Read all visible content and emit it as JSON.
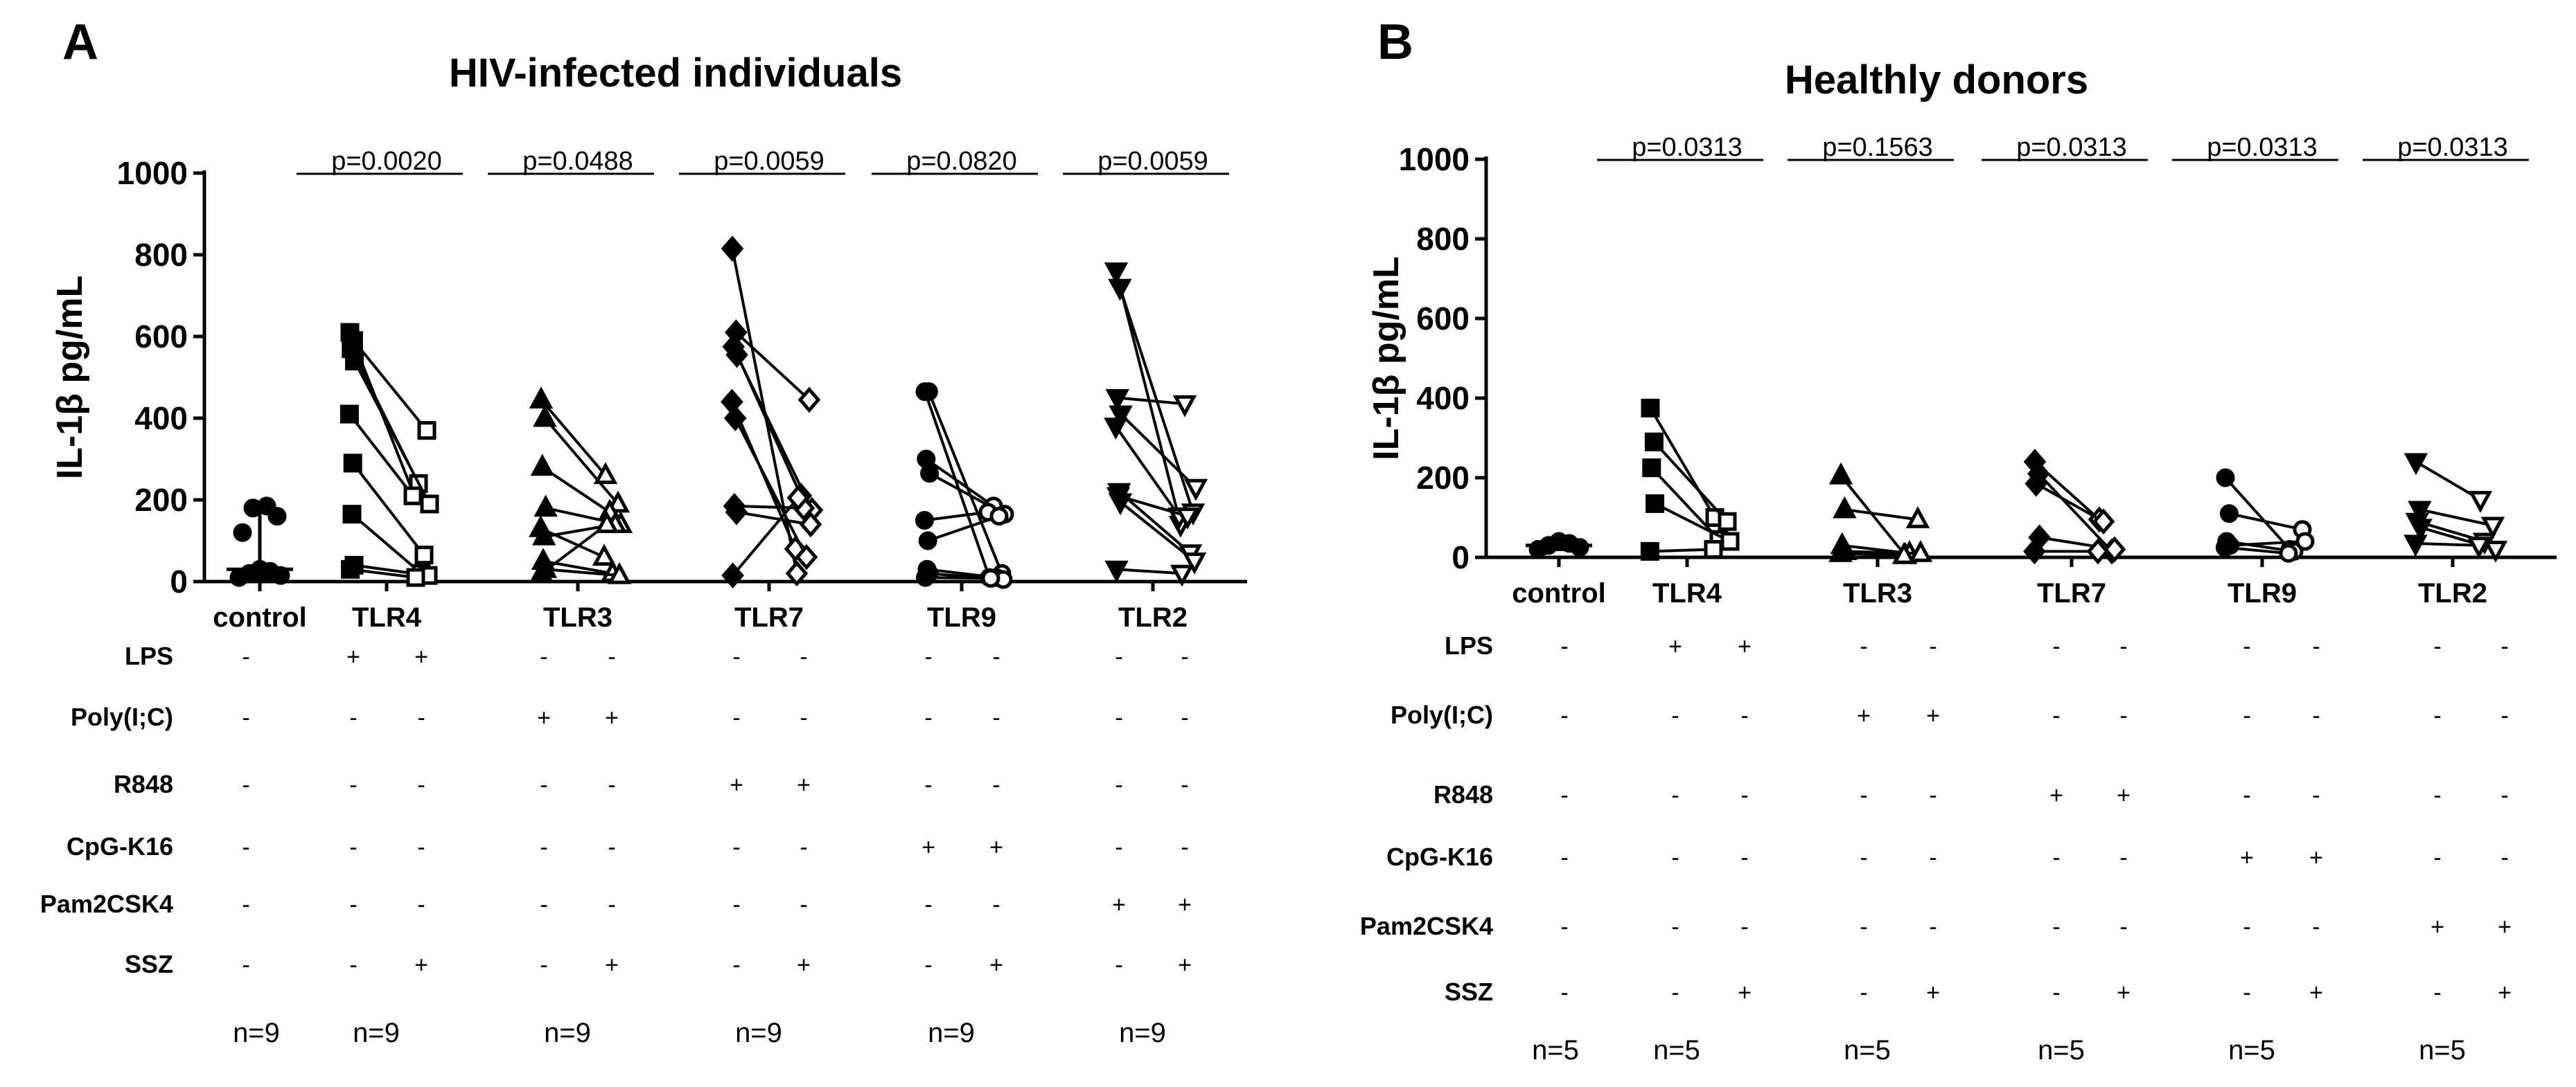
{
  "chart_data": [
    {
      "type": "scatter",
      "panel_letter": "A",
      "title": "HIV-infected individuals",
      "ylabel": "IL-1β pg/mL",
      "ylim": [
        0,
        1000
      ],
      "yticks": [
        0,
        200,
        400,
        600,
        800,
        1000
      ],
      "control": {
        "label": "control",
        "values": [
          10,
          15,
          20,
          25,
          30,
          120,
          160,
          180,
          185
        ],
        "median": 30,
        "whisker_low": 5,
        "whisker_high": 185
      },
      "groups": [
        {
          "label": "TLR4",
          "p": "p=0.0020",
          "marker": "square",
          "pairs": [
            [
              610,
              210
            ],
            [
              590,
              370
            ],
            [
              570,
              240
            ],
            [
              540,
              190
            ],
            [
              410,
              210
            ],
            [
              290,
              65
            ],
            [
              165,
              20
            ],
            [
              40,
              15
            ],
            [
              30,
              10
            ]
          ]
        },
        {
          "label": "TLR3",
          "p": "p=0.0488",
          "marker": "triangle",
          "pairs": [
            [
              445,
              260
            ],
            [
              400,
              190
            ],
            [
              280,
              170
            ],
            [
              180,
              140
            ],
            [
              130,
              60
            ],
            [
              110,
              140
            ],
            [
              50,
              20
            ],
            [
              30,
              15
            ],
            [
              20,
              140
            ]
          ]
        },
        {
          "label": "TLR7",
          "p": "p=0.0059",
          "marker": "diamond",
          "pairs": [
            [
              815,
              20
            ],
            [
              610,
              445
            ],
            [
              575,
              210
            ],
            [
              555,
              175
            ],
            [
              440,
              80
            ],
            [
              400,
              60
            ],
            [
              185,
              180
            ],
            [
              170,
              140
            ],
            [
              15,
              205
            ]
          ]
        },
        {
          "label": "TLR9",
          "p": "p=0.0820",
          "marker": "circle",
          "pairs": [
            [
              465,
              10
            ],
            [
              465,
              20
            ],
            [
              300,
              185
            ],
            [
              265,
              165
            ],
            [
              150,
              170
            ],
            [
              100,
              160
            ],
            [
              30,
              10
            ],
            [
              20,
              5
            ],
            [
              10,
              8
            ]
          ]
        },
        {
          "label": "TLR2",
          "p": "p=0.0059",
          "marker": "triangle-down",
          "pairs": [
            [
              760,
              140
            ],
            [
              720,
              170
            ],
            [
              450,
              435
            ],
            [
              410,
              230
            ],
            [
              380,
              160
            ],
            [
              220,
              70
            ],
            [
              210,
              160
            ],
            [
              195,
              50
            ],
            [
              30,
              20
            ]
          ]
        }
      ],
      "treatment_rows": [
        {
          "label": "LPS",
          "signs": [
            "-",
            "+",
            "+",
            "-",
            "-",
            "-",
            "-",
            "-",
            "-",
            "-",
            "-"
          ]
        },
        {
          "label": "Poly(I;C)",
          "signs": [
            "-",
            "-",
            "-",
            "+",
            "+",
            "-",
            "-",
            "-",
            "-",
            "-",
            "-"
          ]
        },
        {
          "label": "R848",
          "signs": [
            "-",
            "-",
            "-",
            "-",
            "-",
            "+",
            "+",
            "-",
            "-",
            "-",
            "-"
          ]
        },
        {
          "label": "CpG-K16",
          "signs": [
            "-",
            "-",
            "-",
            "-",
            "-",
            "-",
            "-",
            "+",
            "+",
            "-",
            "-"
          ]
        },
        {
          "label": "Pam2CSK4",
          "signs": [
            "-",
            "-",
            "-",
            "-",
            "-",
            "-",
            "-",
            "-",
            "-",
            "+",
            "+"
          ]
        },
        {
          "label": "SSZ",
          "signs": [
            "-",
            "-",
            "+",
            "-",
            "+",
            "-",
            "+",
            "-",
            "+",
            "-",
            "+"
          ]
        }
      ],
      "n_labels": [
        "n=9",
        "n=9",
        "n=9",
        "n=9",
        "n=9",
        "n=9"
      ]
    },
    {
      "type": "scatter",
      "panel_letter": "B",
      "title": "Healthly donors",
      "ylabel": "IL-1β pg/mL",
      "ylim": [
        0,
        1000
      ],
      "yticks": [
        0,
        200,
        400,
        600,
        800,
        1000
      ],
      "control": {
        "label": "control",
        "values": [
          20,
          25,
          30,
          35,
          40
        ],
        "median": 30,
        "whisker_low": 20,
        "whisker_high": 40
      },
      "groups": [
        {
          "label": "TLR4",
          "p": "p=0.0313",
          "marker": "square",
          "pairs": [
            [
              375,
              100
            ],
            [
              290,
              90
            ],
            [
              225,
              45
            ],
            [
              135,
              40
            ],
            [
              15,
              20
            ]
          ]
        },
        {
          "label": "TLR3",
          "p": "p=0.1563",
          "marker": "triangle",
          "pairs": [
            [
              205,
              5
            ],
            [
              120,
              95
            ],
            [
              30,
              10
            ],
            [
              15,
              10
            ],
            [
              10,
              5
            ]
          ]
        },
        {
          "label": "TLR7",
          "p": "p=0.0313",
          "marker": "diamond",
          "pairs": [
            [
              240,
              95
            ],
            [
              210,
              15
            ],
            [
              185,
              90
            ],
            [
              50,
              20
            ],
            [
              15,
              15
            ]
          ]
        },
        {
          "label": "TLR9",
          "p": "p=0.0313",
          "marker": "circle",
          "pairs": [
            [
              200,
              20
            ],
            [
              110,
              70
            ],
            [
              40,
              15
            ],
            [
              30,
              40
            ],
            [
              25,
              10
            ]
          ]
        },
        {
          "label": "TLR2",
          "p": "p=0.0313",
          "marker": "triangle-down",
          "pairs": [
            [
              240,
              145
            ],
            [
              120,
              80
            ],
            [
              90,
              40
            ],
            [
              75,
              20
            ],
            [
              35,
              30
            ]
          ]
        }
      ],
      "treatment_rows": [
        {
          "label": "LPS",
          "signs": [
            "-",
            "+",
            "+",
            "-",
            "-",
            "-",
            "-",
            "-",
            "-",
            "-",
            "-"
          ]
        },
        {
          "label": "Poly(I;C)",
          "signs": [
            "-",
            "-",
            "-",
            "+",
            "+",
            "-",
            "-",
            "-",
            "-",
            "-",
            "-"
          ]
        },
        {
          "label": "R848",
          "signs": [
            "-",
            "-",
            "-",
            "-",
            "-",
            "+",
            "+",
            "-",
            "-",
            "-",
            "-"
          ]
        },
        {
          "label": "CpG-K16",
          "signs": [
            "-",
            "-",
            "-",
            "-",
            "-",
            "-",
            "-",
            "+",
            "+",
            "-",
            "-"
          ]
        },
        {
          "label": "Pam2CSK4",
          "signs": [
            "-",
            "-",
            "-",
            "-",
            "-",
            "-",
            "-",
            "-",
            "-",
            "+",
            "+"
          ]
        },
        {
          "label": "SSZ",
          "signs": [
            "-",
            "-",
            "+",
            "-",
            "+",
            "-",
            "+",
            "-",
            "+",
            "-",
            "+"
          ]
        }
      ],
      "n_labels": [
        "n=5",
        "n=5",
        "n=5",
        "n=5",
        "n=5",
        "n=5"
      ]
    }
  ]
}
